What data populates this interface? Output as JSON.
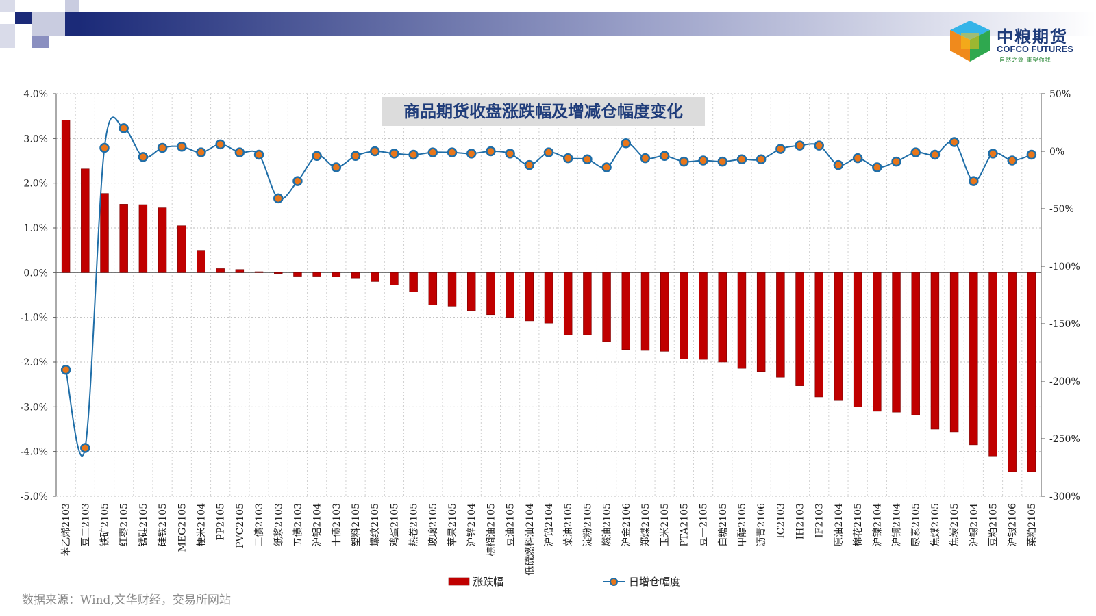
{
  "logo": {
    "cn": "中粮期货",
    "en": "COFCO FUTURES",
    "slogan": "自然之源 重塑你我"
  },
  "source": "数据来源：Wind,文华财经，交易所网站",
  "colors": {
    "bar": "#c00000",
    "line": "#1f6ea8",
    "marker_fill": "#e8761a",
    "title_bg": "#dcdcdc",
    "title_text": "#1f3c7a"
  },
  "chart_data": {
    "type": "bar",
    "title": "商品期货收盘涨跌幅及增减仓幅度变化",
    "categories": [
      "苯乙烯2103",
      "豆二2103",
      "铁矿2105",
      "红枣2105",
      "锰硅2105",
      "硅铁2105",
      "MEG2105",
      "粳米2104",
      "PP2105",
      "PVC2105",
      "二债2103",
      "纸浆2103",
      "五债2103",
      "沪铝2104",
      "十债2103",
      "塑料2105",
      "螺纹2105",
      "鸡蛋2105",
      "热卷2105",
      "玻璃2105",
      "苹果2105",
      "沪锌2104",
      "棕榈油2105",
      "豆油2105",
      "低硫燃料油2104",
      "沪铅2104",
      "菜油2105",
      "淀粉2105",
      "燃油2105",
      "沪金2106",
      "郑煤2105",
      "玉米2105",
      "PTA2105",
      "豆一2105",
      "白糖2105",
      "甲醇2105",
      "沥青2106",
      "IC2103",
      "IH2103",
      "IF2103",
      "原油2104",
      "棉花2105",
      "沪镍2104",
      "沪铜2104",
      "尿素2105",
      "焦煤2105",
      "焦炭2105",
      "沪锡2104",
      "豆粕2105",
      "沪银2106",
      "菜粕2105"
    ],
    "series": [
      {
        "name": "涨跌幅",
        "type": "bar",
        "axis": "left",
        "values": [
          3.41,
          2.32,
          1.77,
          1.53,
          1.52,
          1.45,
          1.05,
          0.5,
          0.09,
          0.07,
          0.02,
          -0.02,
          -0.08,
          -0.08,
          -0.09,
          -0.12,
          -0.2,
          -0.28,
          -0.43,
          -0.72,
          -0.75,
          -0.85,
          -0.94,
          -1.0,
          -1.08,
          -1.13,
          -1.39,
          -1.39,
          -1.54,
          -1.72,
          -1.74,
          -1.76,
          -1.93,
          -1.94,
          -2.0,
          -2.14,
          -2.21,
          -2.34,
          -2.53,
          -2.78,
          -2.86,
          -3.0,
          -3.1,
          -3.12,
          -3.18,
          -3.5,
          -3.56,
          -3.85,
          -4.1,
          -4.45,
          -4.45
        ]
      },
      {
        "name": "日增仓幅度",
        "type": "line",
        "axis": "right",
        "values": [
          -190,
          -258,
          3,
          20,
          -5,
          3,
          4,
          -1,
          6,
          -1,
          -3,
          -41,
          -26,
          -4,
          -14,
          -4,
          0,
          -2,
          -3,
          -1,
          -1,
          -2,
          0,
          -2,
          -12,
          -1,
          -6,
          -7,
          -14,
          7,
          -6,
          -4,
          -9,
          -8,
          -9,
          -7,
          -7,
          2,
          5,
          5,
          -12,
          -6,
          -14,
          -9,
          -1,
          -3,
          8,
          -26,
          -2,
          -8,
          -3
        ]
      }
    ],
    "y_left": {
      "min": -5.0,
      "max": 4.0,
      "step": 1.0,
      "format": "percent1"
    },
    "y_right": {
      "min": -300,
      "max": 50,
      "step": 50,
      "format": "percent0"
    },
    "grid": true,
    "legend": {
      "position": "bottom",
      "items": [
        {
          "label": "涨跌幅",
          "kind": "bar"
        },
        {
          "label": "日增仓幅度",
          "kind": "line"
        }
      ]
    }
  }
}
